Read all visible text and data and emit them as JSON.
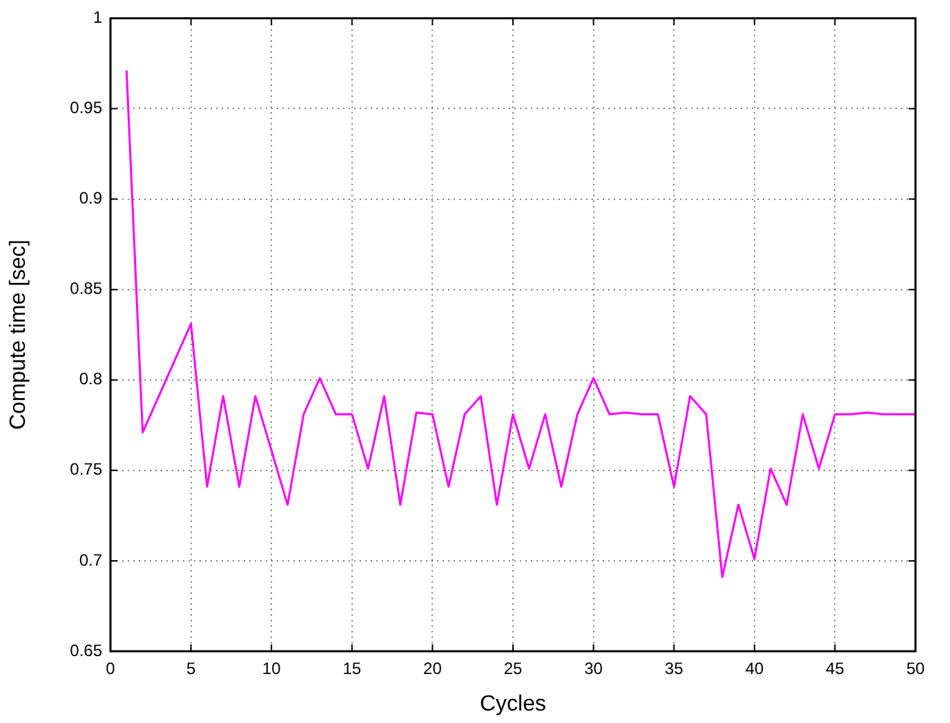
{
  "chart_data": {
    "type": "line",
    "xlabel": "Cycles",
    "ylabel": "Compute time [sec]",
    "x": [
      1,
      2,
      5,
      6,
      7,
      8,
      9,
      10,
      11,
      12,
      13,
      14,
      15,
      16,
      17,
      18,
      19,
      20,
      21,
      22,
      23,
      24,
      25,
      26,
      27,
      28,
      29,
      30,
      31,
      32,
      33,
      34,
      35,
      36,
      37,
      38,
      39,
      40,
      41,
      42,
      43,
      44,
      45,
      46,
      47,
      48,
      49,
      50
    ],
    "series": [
      {
        "color": "#ff00ff",
        "values": [
          0.971,
          0.771,
          0.831,
          0.741,
          0.791,
          0.741,
          0.791,
          0.761,
          0.731,
          0.781,
          0.801,
          0.781,
          0.781,
          0.751,
          0.791,
          0.731,
          0.782,
          0.781,
          0.741,
          0.781,
          0.791,
          0.731,
          0.781,
          0.751,
          0.781,
          0.741,
          0.781,
          0.801,
          0.781,
          0.782,
          0.781,
          0.781,
          0.741,
          0.791,
          0.781,
          0.691,
          0.731,
          0.701,
          0.751,
          0.731,
          0.781,
          0.751,
          0.781,
          0.781,
          0.782,
          0.781,
          0.781,
          0.781
        ]
      }
    ],
    "xlim": [
      0,
      50
    ],
    "xticks": [
      0,
      5,
      10,
      15,
      20,
      25,
      30,
      35,
      40,
      45,
      50
    ],
    "ylim": [
      0.65,
      1
    ],
    "yticks": [
      0.65,
      0.7,
      0.75,
      0.8,
      0.85,
      0.9,
      0.95,
      1
    ],
    "grid": true,
    "legend": false,
    "marker": "none",
    "line_style": "solid"
  }
}
